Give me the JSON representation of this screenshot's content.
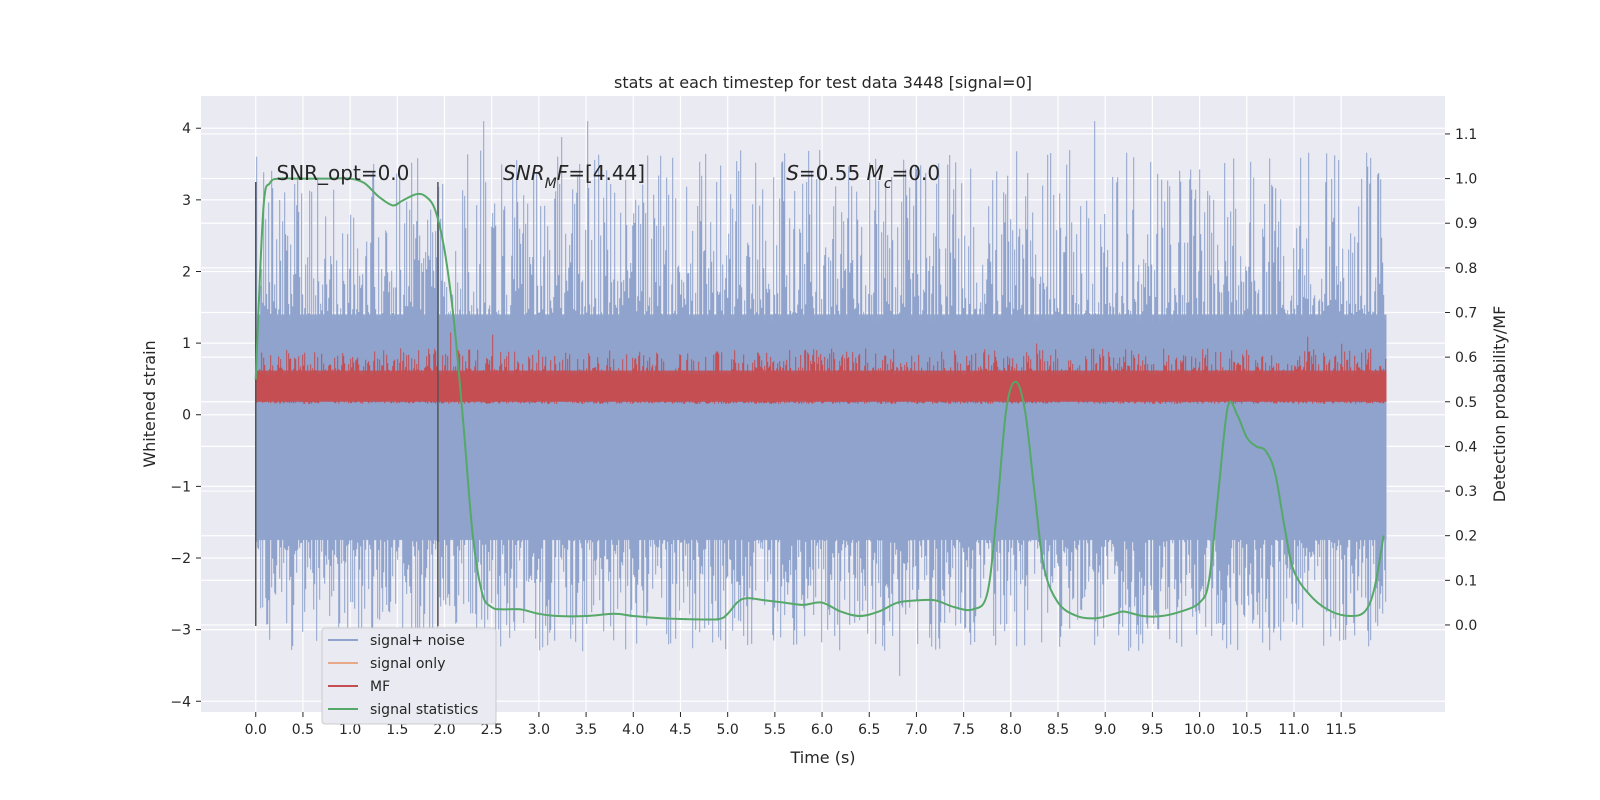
{
  "chart_data": {
    "type": "line",
    "title": "stats at each timestep for test data 3448 [signal=0]",
    "xlabel": "Time (s)",
    "ylabel": "Whitened strain",
    "ylabel_right": "Detection probability/MF",
    "xlim": [
      -0.58,
      12.6
    ],
    "ylim": [
      -4.15,
      4.45
    ],
    "ylim_right": [
      -0.195,
      1.185
    ],
    "x_ticks": [
      0.0,
      0.5,
      1.0,
      1.5,
      2.0,
      2.5,
      3.0,
      3.5,
      4.0,
      4.5,
      5.0,
      5.5,
      6.0,
      6.5,
      7.0,
      7.5,
      8.0,
      8.5,
      9.0,
      9.5,
      10.0,
      10.5,
      11.0,
      11.5
    ],
    "x_tick_labels": [
      "0.0",
      "0.5",
      "1.0",
      "1.5",
      "2.0",
      "2.5",
      "3.0",
      "3.5",
      "4.0",
      "4.5",
      "5.0",
      "5.5",
      "6.0",
      "6.5",
      "7.0",
      "7.5",
      "8.0",
      "8.5",
      "9.0",
      "9.5",
      "10.0",
      "10.5",
      "11.0",
      "11.5"
    ],
    "y_ticks": [
      -4,
      -3,
      -2,
      -1,
      0,
      1,
      2,
      3,
      4
    ],
    "y_tick_labels": [
      "−4",
      "−3",
      "−2",
      "−1",
      "0",
      "1",
      "2",
      "3",
      "4"
    ],
    "y_right_ticks": [
      0.0,
      0.1,
      0.2,
      0.3,
      0.4,
      0.5,
      0.6,
      0.7,
      0.8,
      0.9,
      1.0,
      1.1
    ],
    "y_right_tick_labels": [
      "0.0",
      "0.1",
      "0.2",
      "0.3",
      "0.4",
      "0.5",
      "0.6",
      "0.7",
      "0.8",
      "0.9",
      "1.0",
      "1.1"
    ],
    "grid": true,
    "legend_position": "lower-left",
    "annotations": [
      {
        "id": "snr-opt",
        "parts": [
          {
            "text": "SNR_opt=0.0",
            "italic": false
          }
        ],
        "x": 0.22,
        "y": 3.28
      },
      {
        "id": "snr-mf",
        "parts": [
          {
            "text": "SNR",
            "italic": true
          },
          {
            "text": "M",
            "italic": true,
            "sub": true
          },
          {
            "text": "F",
            "italic": true
          },
          {
            "text": "=[4.44]",
            "italic": false
          }
        ],
        "x": 2.62,
        "y": 3.28
      },
      {
        "id": "s-mc",
        "parts": [
          {
            "text": "S",
            "italic": true
          },
          {
            "text": "=0.55   ",
            "italic": false
          },
          {
            "text": "M",
            "italic": true
          },
          {
            "text": "c",
            "italic": true,
            "sub": true
          },
          {
            "text": "=0.0",
            "italic": false
          }
        ],
        "x": 5.62,
        "y": 3.28
      }
    ],
    "vertical_lines": [
      {
        "x": 0.0,
        "y_from": -2.95,
        "y_to": 3.25
      },
      {
        "x": 1.93,
        "y_from": -2.95,
        "y_to": 3.25
      }
    ],
    "series": [
      {
        "name": "signal+ noise",
        "color": "#8fa3cc",
        "axis": "left",
        "kind": "noise",
        "x_range": [
          0.0,
          11.98
        ],
        "core_band": [
          -1.75,
          1.4
        ],
        "peak_range": [
          -3.7,
          4.1
        ]
      },
      {
        "name": "signal only",
        "color": "#e8a88a",
        "axis": "left",
        "kind": "flat",
        "value": 0.0
      },
      {
        "name": "MF",
        "color": "#c44e52",
        "axis": "right",
        "kind": "noise",
        "x_range": [
          0.0,
          11.98
        ],
        "core_band": [
          0.5,
          0.57
        ],
        "peak_range": [
          0.49,
          0.68
        ]
      },
      {
        "name": "signal statistics",
        "color": "#55a868",
        "axis": "right",
        "kind": "line",
        "x": [
          0.0,
          0.08,
          0.15,
          0.25,
          0.4,
          0.6,
          0.8,
          1.0,
          1.15,
          1.3,
          1.45,
          1.55,
          1.7,
          1.8,
          1.9,
          2.0,
          2.1,
          2.2,
          2.3,
          2.4,
          2.5,
          2.6,
          2.8,
          3.0,
          3.2,
          3.5,
          3.8,
          4.0,
          4.3,
          4.6,
          4.9,
          5.0,
          5.1,
          5.2,
          5.4,
          5.6,
          5.8,
          6.0,
          6.2,
          6.4,
          6.6,
          6.8,
          7.0,
          7.2,
          7.4,
          7.6,
          7.75,
          7.85,
          7.95,
          8.05,
          8.15,
          8.25,
          8.35,
          8.5,
          8.7,
          8.9,
          9.1,
          9.2,
          9.4,
          9.6,
          9.8,
          10.0,
          10.1,
          10.2,
          10.3,
          10.4,
          10.5,
          10.6,
          10.7,
          10.8,
          10.9,
          11.0,
          11.2,
          11.4,
          11.6,
          11.75,
          11.85,
          11.95
        ],
        "y": [
          0.55,
          0.93,
          0.99,
          1.0,
          1.0,
          1.0,
          1.0,
          1.0,
          0.99,
          0.96,
          0.94,
          0.95,
          0.965,
          0.96,
          0.93,
          0.84,
          0.68,
          0.45,
          0.2,
          0.07,
          0.04,
          0.035,
          0.035,
          0.025,
          0.02,
          0.02,
          0.025,
          0.02,
          0.015,
          0.013,
          0.013,
          0.025,
          0.05,
          0.06,
          0.055,
          0.05,
          0.045,
          0.05,
          0.03,
          0.02,
          0.03,
          0.05,
          0.055,
          0.055,
          0.04,
          0.035,
          0.07,
          0.25,
          0.48,
          0.545,
          0.48,
          0.3,
          0.13,
          0.05,
          0.02,
          0.015,
          0.025,
          0.03,
          0.02,
          0.02,
          0.03,
          0.05,
          0.1,
          0.3,
          0.49,
          0.47,
          0.42,
          0.4,
          0.39,
          0.34,
          0.22,
          0.12,
          0.06,
          0.03,
          0.02,
          0.03,
          0.08,
          0.2
        ]
      }
    ]
  }
}
